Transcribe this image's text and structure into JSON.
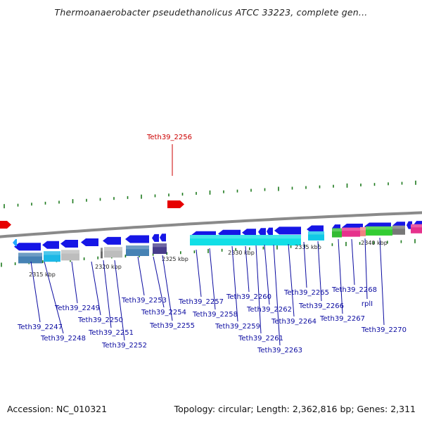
{
  "title": "Thermoanaerobacter pseudethanolicus ATCC 33223, complete gen...",
  "footer": {
    "accession": "Accession: NC_010321",
    "summary": "Topology: circular; Length: 2,362,816 bp; Genes: 2,311"
  },
  "colors": {
    "gene_blue": "#1616e6",
    "highlight_red": "#e60000",
    "backbone": "#8a8a8a",
    "tick_green": "#1d7a1d",
    "label_blue": "#0a0aa0",
    "label_red": "#cc0000"
  },
  "kbp_labels": [
    "2315 kbp",
    "2320 kbp",
    "2325 kbp",
    "2330 kbp",
    "2335 kbp",
    "2340 kbp"
  ],
  "highlight_gene": "Teth39_2256",
  "gene_labels": [
    "Teth39_2247",
    "Teth39_2248",
    "Teth39_2249",
    "Teth39_2250",
    "Teth39_2251",
    "Teth39_2252",
    "Teth39_2253",
    "Teth39_2254",
    "Teth39_2255",
    "Teth39_2257",
    "Teth39_2258",
    "Teth39_2259",
    "Teth39_2260",
    "Teth39_2261",
    "Teth39_2262",
    "Teth39_2263",
    "Teth39_2264",
    "Teth39_2265",
    "Teth39_2266",
    "Teth39_2267",
    "Teth39_2268",
    "rplI",
    "Teth39_2270"
  ]
}
